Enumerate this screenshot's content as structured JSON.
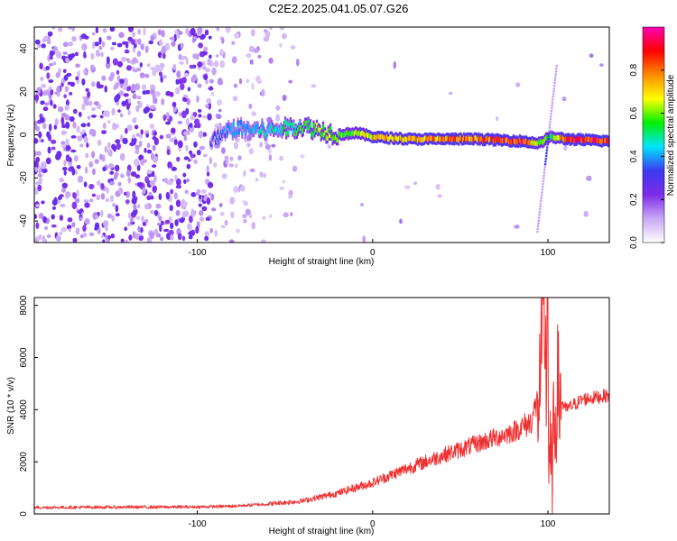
{
  "title": "C2E2.2025.041.05.07.G26",
  "chart_data": [
    {
      "type": "heatmap",
      "xlabel": "Height of straight line (km)",
      "ylabel": "Frequency (Hz)",
      "xlim": [
        -193,
        135
      ],
      "ylim": [
        -50,
        50
      ],
      "x_ticks": [
        -100,
        0,
        100
      ],
      "y_ticks": [
        -40,
        -20,
        0,
        20,
        40
      ],
      "colorbar": {
        "label": "Normalized spectral amplitude",
        "range": [
          0,
          1
        ],
        "ticks": [
          "0.0",
          "0.2",
          "0.4",
          "0.6",
          "0.8"
        ],
        "colormap": [
          "#ffffff",
          "#c9a8f5",
          "#7d2be8",
          "#3a3af0",
          "#00e5ff",
          "#00f000",
          "#ffff00",
          "#ff8c00",
          "#ff0000",
          "#ff00b4"
        ]
      },
      "ridge": {
        "x": [
          -92,
          -80,
          -60,
          -40,
          -30,
          -20,
          -10,
          0,
          20,
          60,
          85,
          95,
          100,
          110,
          135
        ],
        "frequency": [
          -3,
          3,
          2,
          4,
          2,
          0,
          1,
          -1,
          -2,
          -2,
          -3,
          -4,
          -1,
          -2,
          -3
        ],
        "amplitude": [
          0.3,
          0.4,
          0.45,
          0.55,
          0.6,
          0.55,
          0.6,
          0.7,
          0.75,
          0.8,
          0.85,
          0.6,
          0.5,
          0.85,
          0.9
        ]
      },
      "grid": false
    },
    {
      "type": "line",
      "xlabel": "Height of straight line (km)",
      "ylabel": "SNR (10 * v/v)",
      "xlim": [
        -193,
        135
      ],
      "ylim": [
        0,
        8300
      ],
      "x_ticks": [
        -100,
        0,
        100
      ],
      "y_ticks": [
        0,
        2000,
        4000,
        6000,
        8000
      ],
      "color": "#f03030",
      "series": [
        {
          "x": [
            -193,
            -150,
            -100,
            -80,
            -60,
            -40,
            -20,
            0,
            20,
            40,
            60,
            80,
            90,
            95,
            98,
            100,
            102,
            105,
            110,
            120,
            135
          ],
          "values": [
            250,
            260,
            270,
            300,
            380,
            500,
            800,
            1200,
            1750,
            2250,
            2700,
            3150,
            3500,
            4500,
            7500,
            3000,
            1000,
            4800,
            4000,
            4400,
            4550
          ]
        }
      ],
      "grid": false
    }
  ]
}
